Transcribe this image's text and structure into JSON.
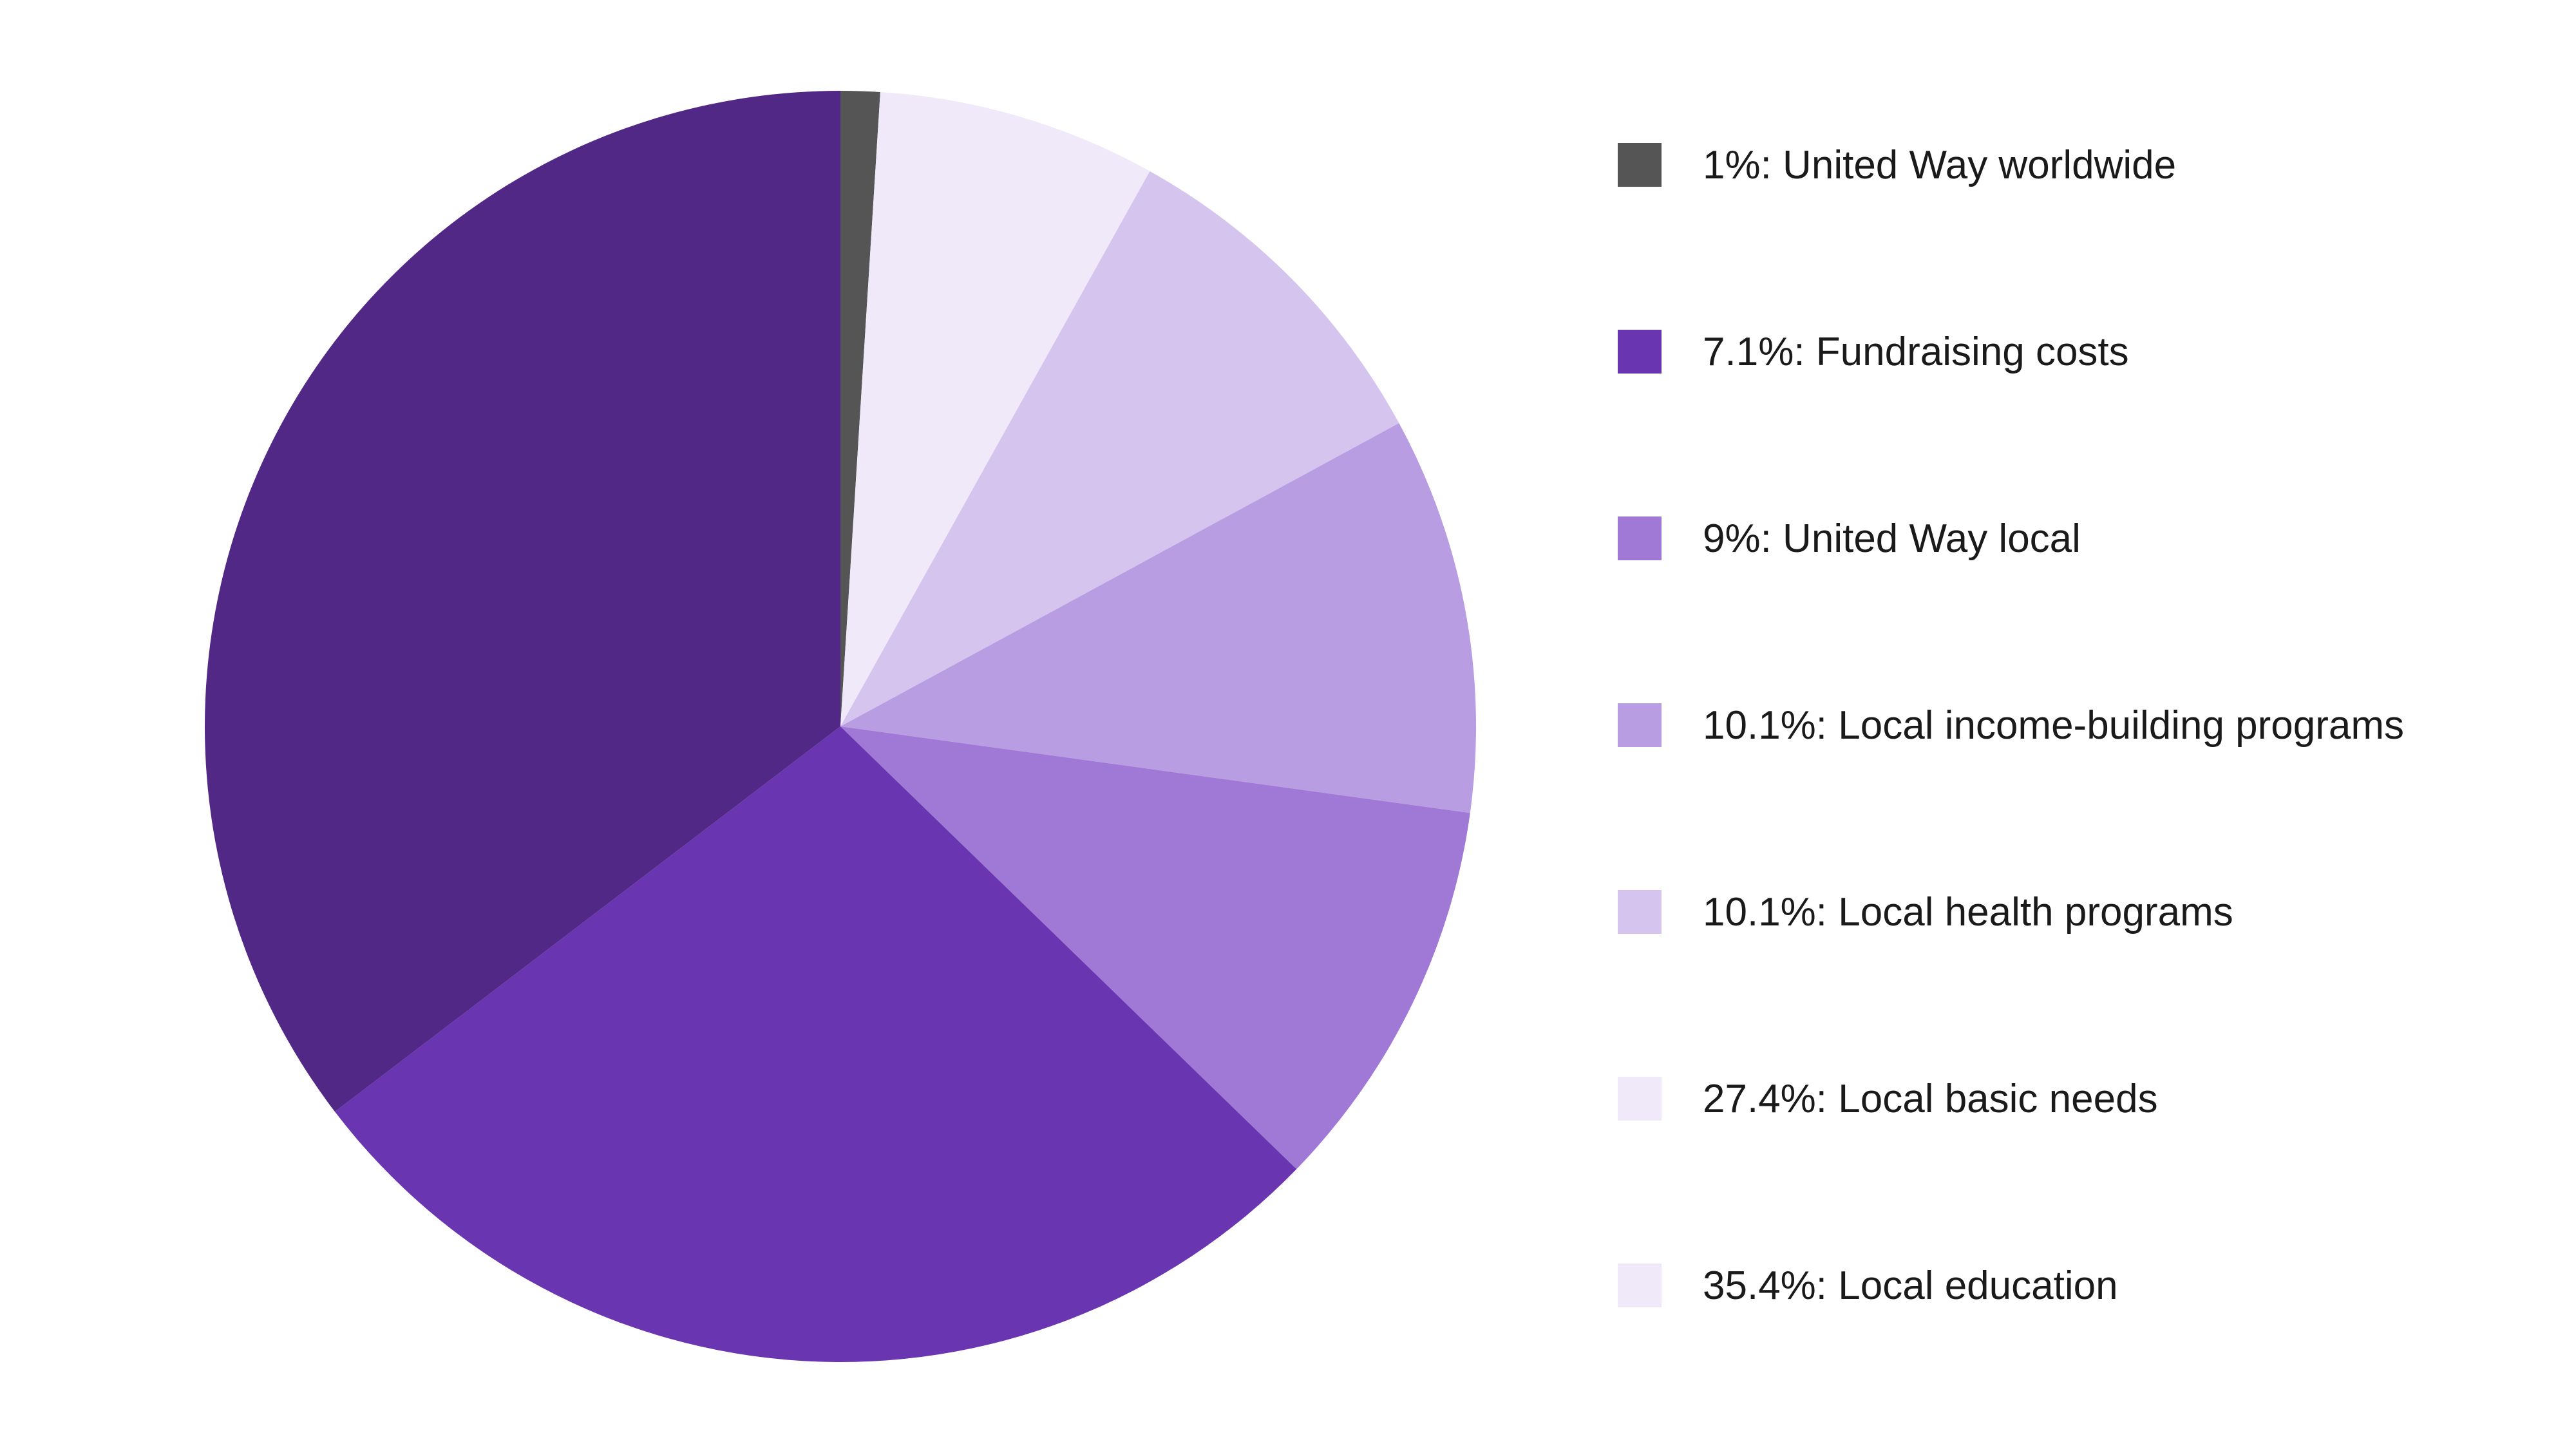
{
  "chart_data": {
    "type": "pie",
    "title": "",
    "start_angle_deg": 0,
    "direction": "clockwise",
    "legend_position": "right",
    "slices": [
      {
        "label": "1%: United Way worldwide",
        "value": 1,
        "color": "#555555",
        "legend_color": "#555555"
      },
      {
        "label": "7.1%: Fundraising costs",
        "value": 7.1,
        "color": "#efe9f9",
        "legend_color": "#6a35b0"
      },
      {
        "label": "9%: United Way local",
        "value": 9,
        "color": "#d5c5ee",
        "legend_color": "#a078d6"
      },
      {
        "label": "10.1%: Local income-building programs",
        "value": 10.1,
        "color": "#b99de2",
        "legend_color": "#b99de2"
      },
      {
        "label": "10.1%: Local health programs",
        "value": 10.1,
        "color": "#a078d6",
        "legend_color": "#d5c5ee"
      },
      {
        "label": "27.4%: Local basic needs",
        "value": 27.4,
        "color": "#6a35b0",
        "legend_color": "#efe9f9"
      },
      {
        "label": "35.4%: Local education",
        "value": 35.4,
        "color": "#522886",
        "legend_color": "#efe9f9"
      }
    ]
  }
}
